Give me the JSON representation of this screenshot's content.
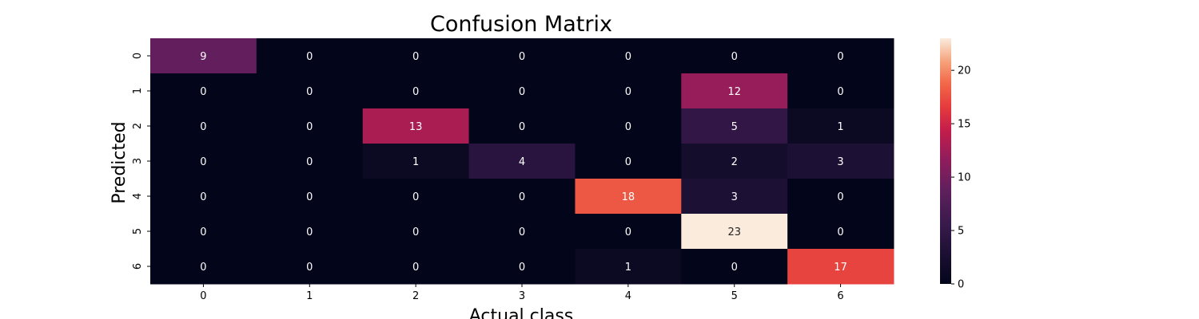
{
  "chart_data": {
    "type": "heatmap",
    "title": "Confusion Matrix",
    "xlabel": "Actual class",
    "ylabel": "Predicted",
    "x_categories": [
      "0",
      "1",
      "2",
      "3",
      "4",
      "5",
      "6"
    ],
    "y_categories": [
      "0",
      "1",
      "2",
      "3",
      "4",
      "5",
      "6"
    ],
    "values": [
      [
        9,
        0,
        0,
        0,
        0,
        0,
        0
      ],
      [
        0,
        0,
        0,
        0,
        0,
        12,
        0
      ],
      [
        0,
        0,
        13,
        0,
        0,
        5,
        1
      ],
      [
        0,
        0,
        1,
        4,
        0,
        2,
        3
      ],
      [
        0,
        0,
        0,
        0,
        18,
        3,
        0
      ],
      [
        0,
        0,
        0,
        0,
        0,
        23,
        0
      ],
      [
        0,
        0,
        0,
        0,
        1,
        0,
        17
      ]
    ],
    "colorbar": {
      "min": 0,
      "max": 23,
      "ticks": [
        0,
        5,
        10,
        15,
        20
      ],
      "colormap": "rocket"
    },
    "annotations": true,
    "grid": false
  }
}
